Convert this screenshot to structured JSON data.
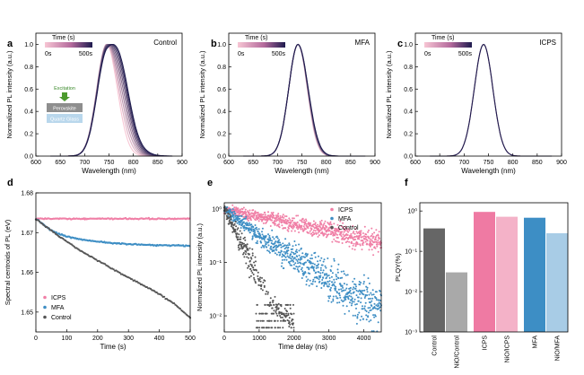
{
  "chart_data": [
    {
      "panel": "a",
      "type": "line",
      "label": "Control",
      "xlabel": "Wavelength (nm)",
      "ylabel": "Normalized PL intensity (a.u.)",
      "xlim": [
        600,
        900
      ],
      "ylim": [
        0,
        1.1
      ],
      "xticks": [
        "600",
        "650",
        "700",
        "750",
        "800",
        "850",
        "900"
      ],
      "yticks": [
        "0.0",
        "0.2",
        "0.4",
        "0.6",
        "0.8",
        "1.0"
      ],
      "colorbar": {
        "title": "Time (s)",
        "min_label": "0s",
        "max_label": "500s",
        "colors": [
          "#f7c6d4",
          "#1e1b4e"
        ]
      },
      "spectra": {
        "peak": 745,
        "width_left": 20,
        "width_right_start": 22,
        "width_right_end": 34,
        "shoulder": 0.3,
        "count": 9
      },
      "inset": {
        "excitation": "Excitation",
        "layer_top": "Perovskite",
        "layer_bottom": "Quartz Glass"
      }
    },
    {
      "panel": "b",
      "type": "line",
      "label": "MFA",
      "xlabel": "Wavelength (nm)",
      "ylabel": "Normalized PL intensity (a.u.)",
      "xlim": [
        600,
        900
      ],
      "ylim": [
        0,
        1.1
      ],
      "xticks": [
        "600",
        "650",
        "700",
        "750",
        "800",
        "850",
        "900"
      ],
      "yticks": [
        "0.0",
        "0.2",
        "0.4",
        "0.6",
        "0.8",
        "1.0"
      ],
      "colorbar": {
        "title": "Time (s)",
        "min_label": "0s",
        "max_label": "500s",
        "colors": [
          "#f7c6d4",
          "#1e1b4e"
        ]
      },
      "spectra": {
        "peak": 742,
        "width_left": 19,
        "width_right_start": 19,
        "width_right_end": 21,
        "shoulder": 0,
        "count": 6
      }
    },
    {
      "panel": "c",
      "type": "line",
      "label": "ICPS",
      "xlabel": "Wavelength (nm)",
      "ylabel": "Normalized PL intensity (a.u.)",
      "xlim": [
        600,
        900
      ],
      "ylim": [
        0,
        1.1
      ],
      "xticks": [
        "600",
        "650",
        "700",
        "750",
        "800",
        "850",
        "900"
      ],
      "yticks": [
        "0.0",
        "0.2",
        "0.4",
        "0.6",
        "0.8",
        "1.0"
      ],
      "colorbar": {
        "title": "Time (s)",
        "min_label": "0s",
        "max_label": "500s",
        "colors": [
          "#f7c6d4",
          "#1e1b4e"
        ]
      },
      "spectra": {
        "peak": 740,
        "width_left": 19,
        "width_right_start": 19,
        "width_right_end": 19,
        "shoulder": 0,
        "count": 3
      }
    },
    {
      "panel": "d",
      "type": "scatter",
      "xlabel": "Time (s)",
      "ylabel": "Spectral centroids of PL (eV)",
      "xlim": [
        0,
        500
      ],
      "ylim": [
        1.645,
        1.68
      ],
      "xticks": [
        "0",
        "100",
        "200",
        "300",
        "400",
        "500"
      ],
      "yticks": [
        "1.65",
        "1.66",
        "1.67",
        "1.68"
      ],
      "legend": "bottom-left",
      "series": [
        {
          "name": "ICPS",
          "color": "#f07fa6",
          "x": [
            0,
            100,
            200,
            300,
            400,
            500
          ],
          "y": [
            1.6735,
            1.6735,
            1.6735,
            1.6735,
            1.6735,
            1.6735
          ]
        },
        {
          "name": "MFA",
          "color": "#3e8ec4",
          "x": [
            0,
            50,
            100,
            150,
            200,
            300,
            400,
            500
          ],
          "y": [
            1.6735,
            1.6705,
            1.669,
            1.6682,
            1.6677,
            1.6671,
            1.6668,
            1.6667
          ]
        },
        {
          "name": "Control",
          "color": "#555555",
          "x": [
            0,
            50,
            100,
            150,
            200,
            250,
            300,
            350,
            400,
            450,
            500
          ],
          "y": [
            1.6735,
            1.6705,
            1.6677,
            1.6652,
            1.663,
            1.6608,
            1.6587,
            1.6567,
            1.6545,
            1.652,
            1.6485
          ]
        }
      ]
    },
    {
      "panel": "e",
      "type": "scatter",
      "xlabel": "Time delay (ns)",
      "ylabel": "Normalized PL intensity (a.u.)",
      "xlim": [
        0,
        4500
      ],
      "ylim": [
        0.005,
        1.3
      ],
      "yscale": "log",
      "xticks": [
        "0",
        "1000",
        "2000",
        "3000",
        "4000"
      ],
      "yticks": [
        "10⁻²",
        "10⁻¹",
        "10⁰"
      ],
      "legend": "top-right",
      "series": [
        {
          "name": "ICPS",
          "color": "#f07fa6",
          "x": [
            0,
            1000,
            2000,
            3000,
            4000,
            4500
          ],
          "y": [
            1.0,
            0.72,
            0.52,
            0.38,
            0.28,
            0.24
          ]
        },
        {
          "name": "MFA",
          "color": "#3e8ec4",
          "x": [
            0,
            1000,
            2000,
            3000,
            4000,
            4500
          ],
          "y": [
            1.0,
            0.32,
            0.12,
            0.045,
            0.018,
            0.012
          ]
        },
        {
          "name": "Control",
          "color": "#555555",
          "x": [
            0,
            500,
            1000,
            1500,
            2000
          ],
          "y": [
            1.0,
            0.22,
            0.05,
            0.013,
            0.008
          ]
        }
      ]
    },
    {
      "panel": "f",
      "type": "bar",
      "ylabel": "PLQY(%)",
      "yscale": "log",
      "ylim": [
        0.001,
        1.6
      ],
      "yticks": [
        "10⁻³",
        "10⁻²",
        "10⁻¹",
        "10⁰"
      ],
      "categories": [
        "Control",
        "NiO/Control",
        "ICPS",
        "NiO/ICPS",
        "MFA",
        "NiO/MFA"
      ],
      "values": [
        0.37,
        0.03,
        0.95,
        0.72,
        0.68,
        0.28
      ],
      "colors": [
        "#666666",
        "#a9a9a9",
        "#ef7aa3",
        "#f4b2c8",
        "#3d8ec5",
        "#a8cce6"
      ]
    }
  ]
}
